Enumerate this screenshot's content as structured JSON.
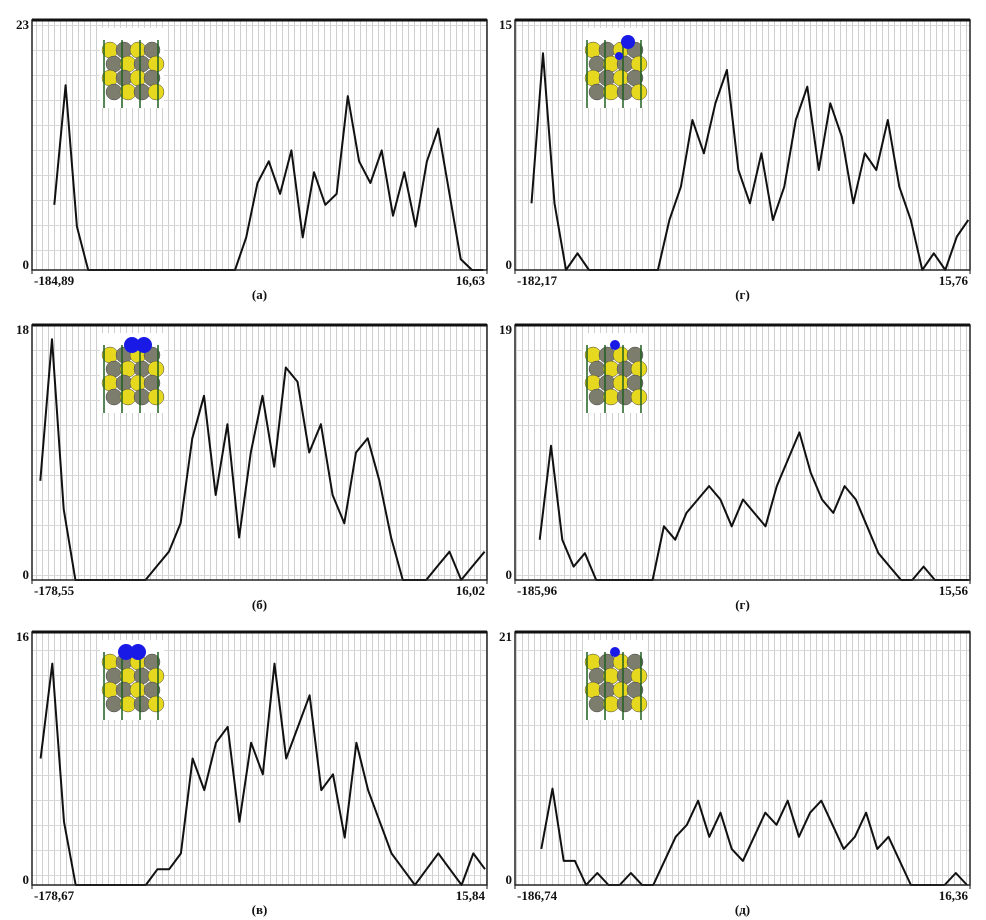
{
  "chart_data": [
    {
      "type": "line",
      "caption": "(а)",
      "x": [
        -175,
        -170,
        -165,
        -160,
        -155,
        -150,
        -145,
        -140,
        -135,
        -130,
        -125,
        -120,
        -115,
        -110,
        -105,
        -100,
        -95,
        -90,
        -85,
        -80,
        -75,
        -70,
        -65,
        -60,
        -55,
        -50,
        -45,
        -40,
        -35,
        -30,
        -25,
        -20,
        -15,
        -10,
        -5,
        0,
        5,
        10,
        15
      ],
      "values": [
        6,
        17,
        4,
        0,
        0,
        0,
        0,
        0,
        0,
        0,
        0,
        0,
        0,
        0,
        0,
        0,
        0,
        3,
        8,
        10,
        7,
        11,
        3,
        9,
        6,
        7,
        16,
        10,
        8,
        11,
        5,
        9,
        4,
        10,
        13,
        7,
        1,
        0,
        0
      ],
      "color": "#111111",
      "xlim": [
        -184.89,
        16.63
      ],
      "xticks": [
        {
          "value": -184.89,
          "label": "-184,89"
        },
        {
          "value": 16.63,
          "label": "16,63"
        }
      ],
      "ylim": [
        0,
        23
      ],
      "yticks": [
        0,
        23
      ],
      "grid": true
    },
    {
      "type": "line",
      "caption": "(г)",
      "x": [
        -175,
        -170,
        -165,
        -160,
        -155,
        -150,
        -145,
        -140,
        -135,
        -130,
        -125,
        -120,
        -115,
        -110,
        -105,
        -100,
        -95,
        -90,
        -85,
        -80,
        -75,
        -70,
        -65,
        -60,
        -55,
        -50,
        -45,
        -40,
        -35,
        -30,
        -25,
        -20,
        -15,
        -10,
        -5,
        0,
        5,
        10,
        15
      ],
      "values": [
        4,
        13,
        4,
        0,
        1,
        0,
        0,
        0,
        0,
        0,
        0,
        0,
        3,
        5,
        9,
        7,
        10,
        12,
        6,
        4,
        7,
        3,
        5,
        9,
        11,
        6,
        10,
        8,
        4,
        7,
        6,
        9,
        5,
        3,
        0,
        1,
        0,
        2,
        3
      ],
      "color": "#111111",
      "xlim": [
        -182.17,
        15.76
      ],
      "xticks": [
        {
          "value": -182.17,
          "label": "-182,17"
        },
        {
          "value": 15.76,
          "label": "15,76"
        }
      ],
      "ylim": [
        0,
        15
      ],
      "yticks": [
        0,
        15
      ],
      "grid": true
    },
    {
      "type": "line",
      "caption": "(б)",
      "x": [
        -175,
        -170,
        -165,
        -160,
        -155,
        -150,
        -145,
        -140,
        -135,
        -130,
        -125,
        -120,
        -115,
        -110,
        -105,
        -100,
        -95,
        -90,
        -85,
        -80,
        -75,
        -70,
        -65,
        -60,
        -55,
        -50,
        -45,
        -40,
        -35,
        -30,
        -25,
        -20,
        -15,
        -10,
        -5,
        0,
        5,
        10,
        15
      ],
      "values": [
        7,
        17,
        5,
        0,
        0,
        0,
        0,
        0,
        0,
        0,
        1,
        2,
        4,
        10,
        13,
        6,
        11,
        3,
        9,
        13,
        8,
        15,
        14,
        9,
        11,
        6,
        4,
        9,
        10,
        7,
        3,
        0,
        0,
        0,
        1,
        2,
        0,
        1,
        2
      ],
      "color": "#111111",
      "xlim": [
        -178.55,
        16.02
      ],
      "xticks": [
        {
          "value": -178.55,
          "label": "-178,55"
        },
        {
          "value": 16.02,
          "label": "16,02"
        }
      ],
      "ylim": [
        0,
        18
      ],
      "yticks": [
        0,
        18
      ],
      "grid": true
    },
    {
      "type": "line",
      "caption": "(г)",
      "x": [
        -175,
        -170,
        -165,
        -160,
        -155,
        -150,
        -145,
        -140,
        -135,
        -130,
        -125,
        -120,
        -115,
        -110,
        -105,
        -100,
        -95,
        -90,
        -85,
        -80,
        -75,
        -70,
        -65,
        -60,
        -55,
        -50,
        -45,
        -40,
        -35,
        -30,
        -25,
        -20,
        -15,
        -10,
        -5,
        0,
        5,
        10,
        15
      ],
      "values": [
        3,
        10,
        3,
        1,
        2,
        0,
        0,
        0,
        0,
        0,
        0,
        4,
        3,
        5,
        6,
        7,
        6,
        4,
        6,
        5,
        4,
        7,
        9,
        11,
        8,
        6,
        5,
        7,
        6,
        4,
        2,
        1,
        0,
        0,
        1,
        0,
        0,
        0,
        0
      ],
      "color": "#111111",
      "xlim": [
        -185.96,
        15.56
      ],
      "xticks": [
        {
          "value": -185.96,
          "label": "-185,96"
        },
        {
          "value": 15.56,
          "label": "15,56"
        }
      ],
      "ylim": [
        0,
        19
      ],
      "yticks": [
        0,
        19
      ],
      "grid": true
    },
    {
      "type": "line",
      "caption": "(в)",
      "x": [
        -175,
        -170,
        -165,
        -160,
        -155,
        -150,
        -145,
        -140,
        -135,
        -130,
        -125,
        -120,
        -115,
        -110,
        -105,
        -100,
        -95,
        -90,
        -85,
        -80,
        -75,
        -70,
        -65,
        -60,
        -55,
        -50,
        -45,
        -40,
        -35,
        -30,
        -25,
        -20,
        -15,
        -10,
        -5,
        0,
        5,
        10,
        15
      ],
      "values": [
        8,
        14,
        4,
        0,
        0,
        0,
        0,
        0,
        0,
        0,
        1,
        1,
        2,
        8,
        6,
        9,
        10,
        4,
        9,
        7,
        14,
        8,
        10,
        12,
        6,
        7,
        3,
        9,
        6,
        4,
        2,
        1,
        0,
        1,
        2,
        1,
        0,
        2,
        1
      ],
      "color": "#111111",
      "xlim": [
        -178.67,
        15.84
      ],
      "xticks": [
        {
          "value": -178.67,
          "label": "-178,67"
        },
        {
          "value": 15.84,
          "label": "15,84"
        }
      ],
      "ylim": [
        0,
        16
      ],
      "yticks": [
        0,
        16
      ],
      "grid": true
    },
    {
      "type": "line",
      "caption": "(д)",
      "x": [
        -175,
        -170,
        -165,
        -160,
        -155,
        -150,
        -145,
        -140,
        -135,
        -130,
        -125,
        -120,
        -115,
        -110,
        -105,
        -100,
        -95,
        -90,
        -85,
        -80,
        -75,
        -70,
        -65,
        -60,
        -55,
        -50,
        -45,
        -40,
        -35,
        -30,
        -25,
        -20,
        -15,
        -10,
        -5,
        0,
        5,
        10,
        15
      ],
      "values": [
        3,
        8,
        2,
        2,
        0,
        1,
        0,
        0,
        1,
        0,
        0,
        2,
        4,
        5,
        7,
        4,
        6,
        3,
        2,
        4,
        6,
        5,
        7,
        4,
        6,
        7,
        5,
        3,
        4,
        6,
        3,
        4,
        2,
        0,
        0,
        0,
        0,
        1,
        0
      ],
      "color": "#111111",
      "xlim": [
        -186.74,
        16.36
      ],
      "xticks": [
        {
          "value": -186.74,
          "label": "-186,74"
        },
        {
          "value": 16.36,
          "label": "16,36"
        }
      ],
      "ylim": [
        0,
        21
      ],
      "yticks": [
        0,
        21
      ],
      "grid": true
    }
  ]
}
